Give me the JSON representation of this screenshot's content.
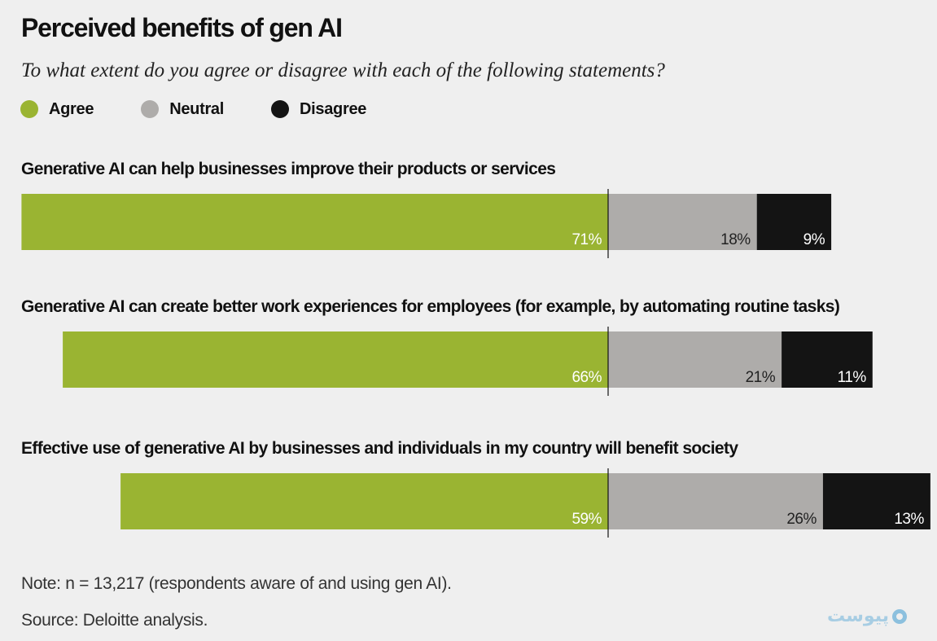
{
  "title": "Perceived benefits of gen AI",
  "subtitle": "To what extent do you agree or disagree with each of the following statements?",
  "legend": [
    {
      "label": "Agree",
      "color": "#9ab432"
    },
    {
      "label": "Neutral",
      "color": "#aeacaa"
    },
    {
      "label": "Disagree",
      "color": "#141414"
    }
  ],
  "chart_data": {
    "type": "bar",
    "orientation": "horizontal-stacked-diverging",
    "categories": [
      "Generative AI can help businesses improve their products or services",
      "Generative AI can create better work experiences for employees (for example, by automating routine tasks)",
      "Effective use of generative AI by businesses and individuals in my country will benefit society"
    ],
    "series": [
      {
        "name": "Agree",
        "values": [
          71,
          66,
          59
        ],
        "labels": [
          "71%",
          "66%",
          "59%"
        ],
        "color": "#9ab432"
      },
      {
        "name": "Neutral",
        "values": [
          18,
          21,
          26
        ],
        "labels": [
          "18%",
          "21%",
          "26%"
        ],
        "color": "#aeacaa"
      },
      {
        "name": "Disagree",
        "values": [
          9,
          11,
          13
        ],
        "labels": [
          "9%",
          "11%",
          "13%"
        ],
        "color": "#141414"
      }
    ],
    "legend_position": "top-left"
  },
  "note": "Note: n = 13,217 (respondents aware of and using gen AI).",
  "source": "Source: Deloitte analysis.",
  "watermark": "پیوست"
}
